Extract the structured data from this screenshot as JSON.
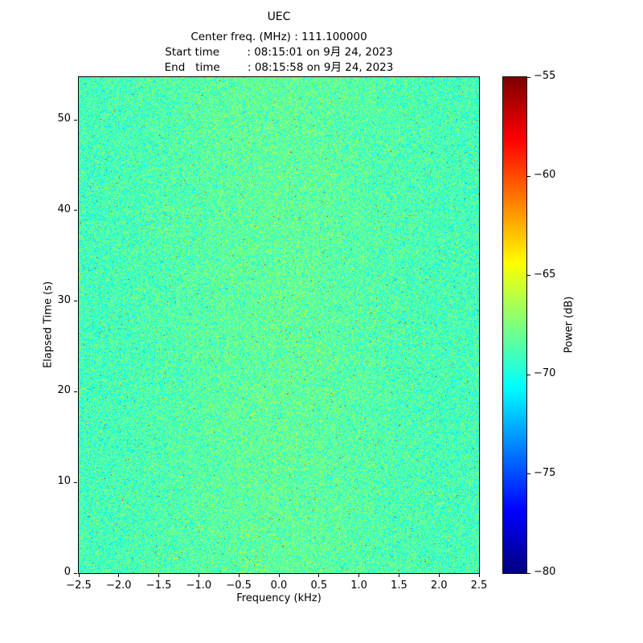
{
  "chart_data": {
    "type": "heatmap",
    "title": "UEC",
    "header_lines": [
      "Center freq. (MHz) : 111.100000",
      "Start time        : 08:15:01 on 9月 24, 2023",
      "End   time        : 08:15:58 on 9月 24, 2023"
    ],
    "center_freq_mhz": "111.100000",
    "start_time": "08:15:01 on 9月 24, 2023",
    "end_time": "08:15:58 on 9月 24, 2023",
    "xlabel": "Frequency (kHz)",
    "ylabel": "Elapsed Time (s)",
    "xlim": [
      -2.5,
      2.5
    ],
    "ylim": [
      0,
      54.7
    ],
    "x_ticks": [
      -2.5,
      -2.0,
      -1.5,
      -1.0,
      -0.5,
      0.0,
      0.5,
      1.0,
      1.5,
      2.0,
      2.5
    ],
    "x_tick_labels": [
      "−2.5",
      "−2.0",
      "−1.5",
      "−1.0",
      "−0.5",
      "0.0",
      "0.5",
      "1.0",
      "1.5",
      "2.0",
      "2.5"
    ],
    "y_ticks": [
      0,
      10,
      20,
      30,
      40,
      50
    ],
    "y_tick_labels": [
      "0",
      "10",
      "20",
      "30",
      "40",
      "50"
    ],
    "colorbar": {
      "label": "Power (dB)",
      "min": -80,
      "max": -55,
      "ticks": [
        -55,
        -60,
        -65,
        -70,
        -75,
        -80
      ],
      "tick_labels": [
        "−55",
        "−60",
        "−65",
        "−70",
        "−75",
        "−80"
      ],
      "colormap": "jet"
    },
    "noise": {
      "description": "broadband noise spectrogram, no visible signal",
      "mean_db": -69,
      "std_db": 4,
      "hot_speck_probability": 0.0025
    }
  }
}
